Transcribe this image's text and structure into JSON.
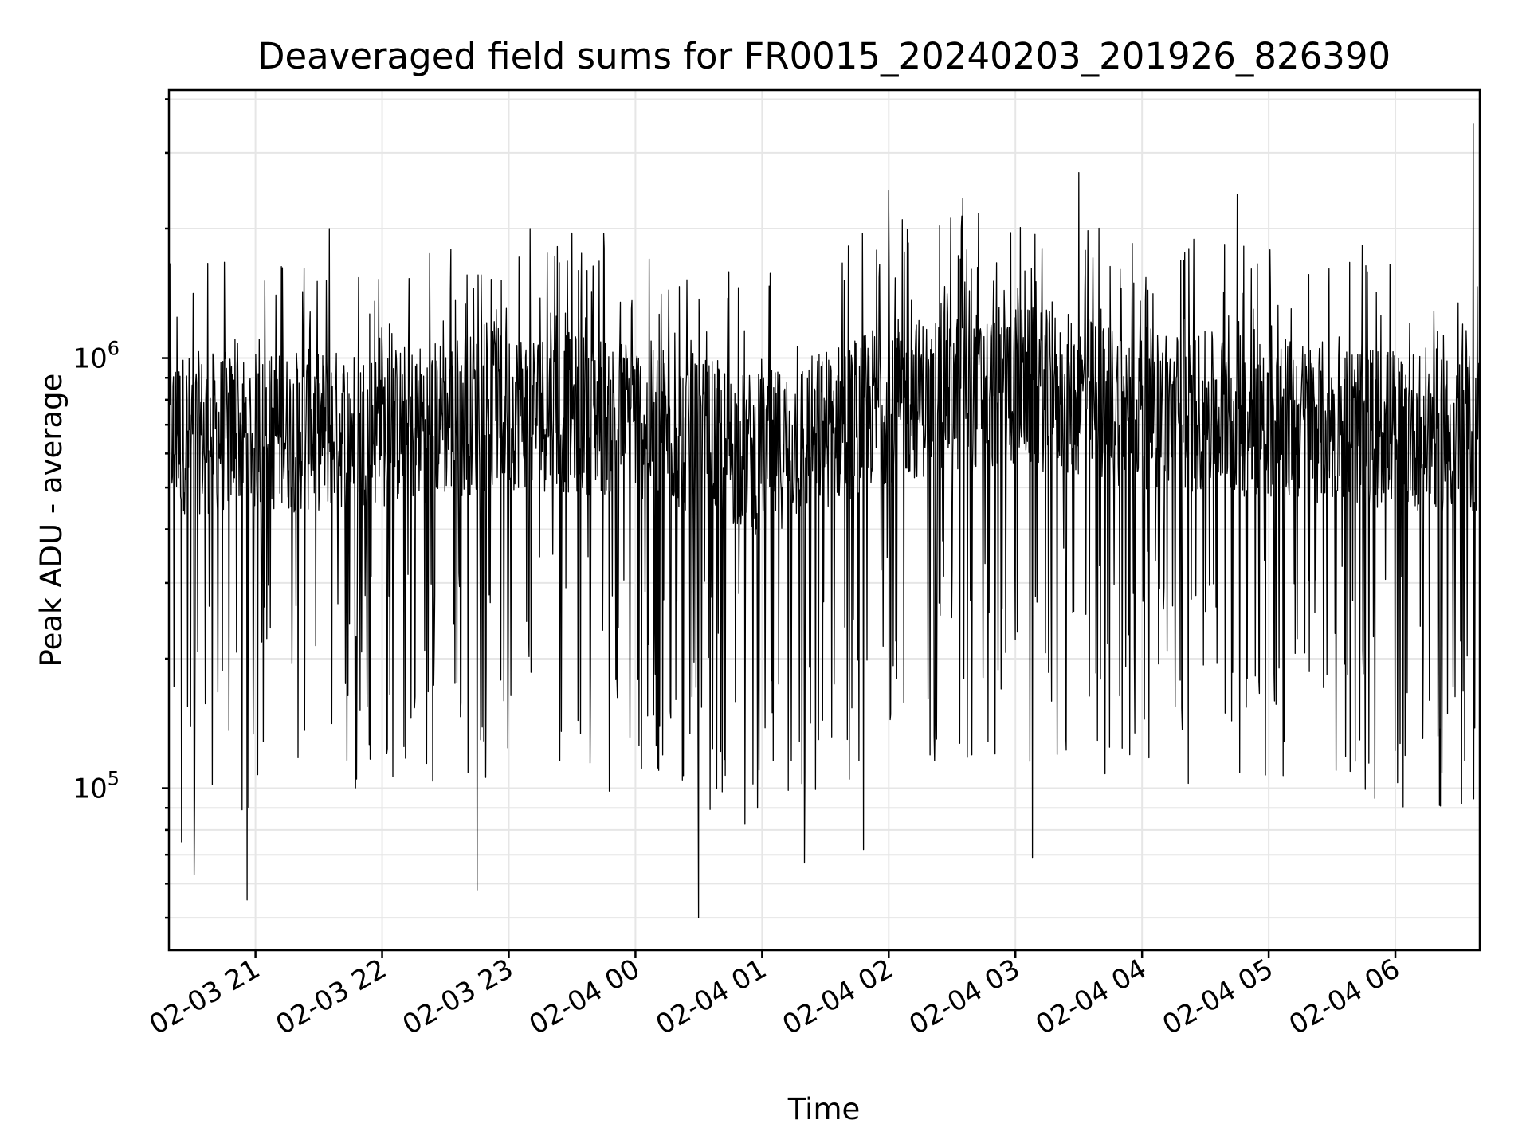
{
  "chart_data": {
    "type": "line",
    "title": "Deaveraged field sums for FR0015_20240203_201926_826390",
    "xlabel": "Time",
    "ylabel": "Peak ADU - average",
    "yscale": "log",
    "ylim": [
      42000,
      4200000
    ],
    "y_tick_labels": [
      {
        "value": 100000,
        "base": "10",
        "exp": "5"
      },
      {
        "value": 1000000,
        "base": "10",
        "exp": "6"
      }
    ],
    "x_tick_labels": [
      "02-03 21",
      "02-03 22",
      "02-03 23",
      "02-04 00",
      "02-04 01",
      "02-04 02",
      "02-04 03",
      "02-04 04",
      "02-04 05",
      "02-04 06"
    ],
    "grid": true,
    "series": [
      {
        "color": "#000000",
        "x_start": "2024-02-03 20:19",
        "x_end": "2024-02-04 06:40",
        "baseline_levels": [
          {
            "x": "2024-02-03 20:20",
            "y": 700000
          },
          {
            "x": "2024-02-03 21:00",
            "y": 700000
          },
          {
            "x": "2024-02-03 22:00",
            "y": 720000
          },
          {
            "x": "2024-02-03 23:00",
            "y": 800000
          },
          {
            "x": "2024-02-04 00:00",
            "y": 760000
          },
          {
            "x": "2024-02-04 01:00",
            "y": 620000
          },
          {
            "x": "2024-02-04 02:00",
            "y": 830000
          },
          {
            "x": "2024-02-04 03:00",
            "y": 900000
          },
          {
            "x": "2024-02-04 04:00",
            "y": 800000
          },
          {
            "x": "2024-02-04 05:00",
            "y": 760000
          },
          {
            "x": "2024-02-04 06:00",
            "y": 720000
          },
          {
            "x": "2024-02-04 06:40",
            "y": 700000
          }
        ],
        "peaks": [
          {
            "x": "2024-02-03 21:35",
            "y": 2000000
          },
          {
            "x": "2024-02-03 23:10",
            "y": 2000000
          },
          {
            "x": "2024-02-03 23:45",
            "y": 1950000
          },
          {
            "x": "2024-02-04 02:00",
            "y": 2450000
          },
          {
            "x": "2024-02-04 02:35",
            "y": 2350000
          },
          {
            "x": "2024-02-04 03:30",
            "y": 2700000
          },
          {
            "x": "2024-02-04 04:45",
            "y": 2400000
          },
          {
            "x": "2024-02-04 06:37",
            "y": 3500000
          }
        ],
        "troughs": [
          {
            "x": "2024-02-03 20:25",
            "y": 75000
          },
          {
            "x": "2024-02-03 20:31",
            "y": 63000
          },
          {
            "x": "2024-02-03 20:56",
            "y": 55000
          },
          {
            "x": "2024-02-03 22:45",
            "y": 58000
          },
          {
            "x": "2024-02-04 00:30",
            "y": 50000
          },
          {
            "x": "2024-02-04 01:20",
            "y": 67000
          },
          {
            "x": "2024-02-04 01:48",
            "y": 72000
          },
          {
            "x": "2024-02-04 03:08",
            "y": 69000
          }
        ]
      }
    ]
  }
}
